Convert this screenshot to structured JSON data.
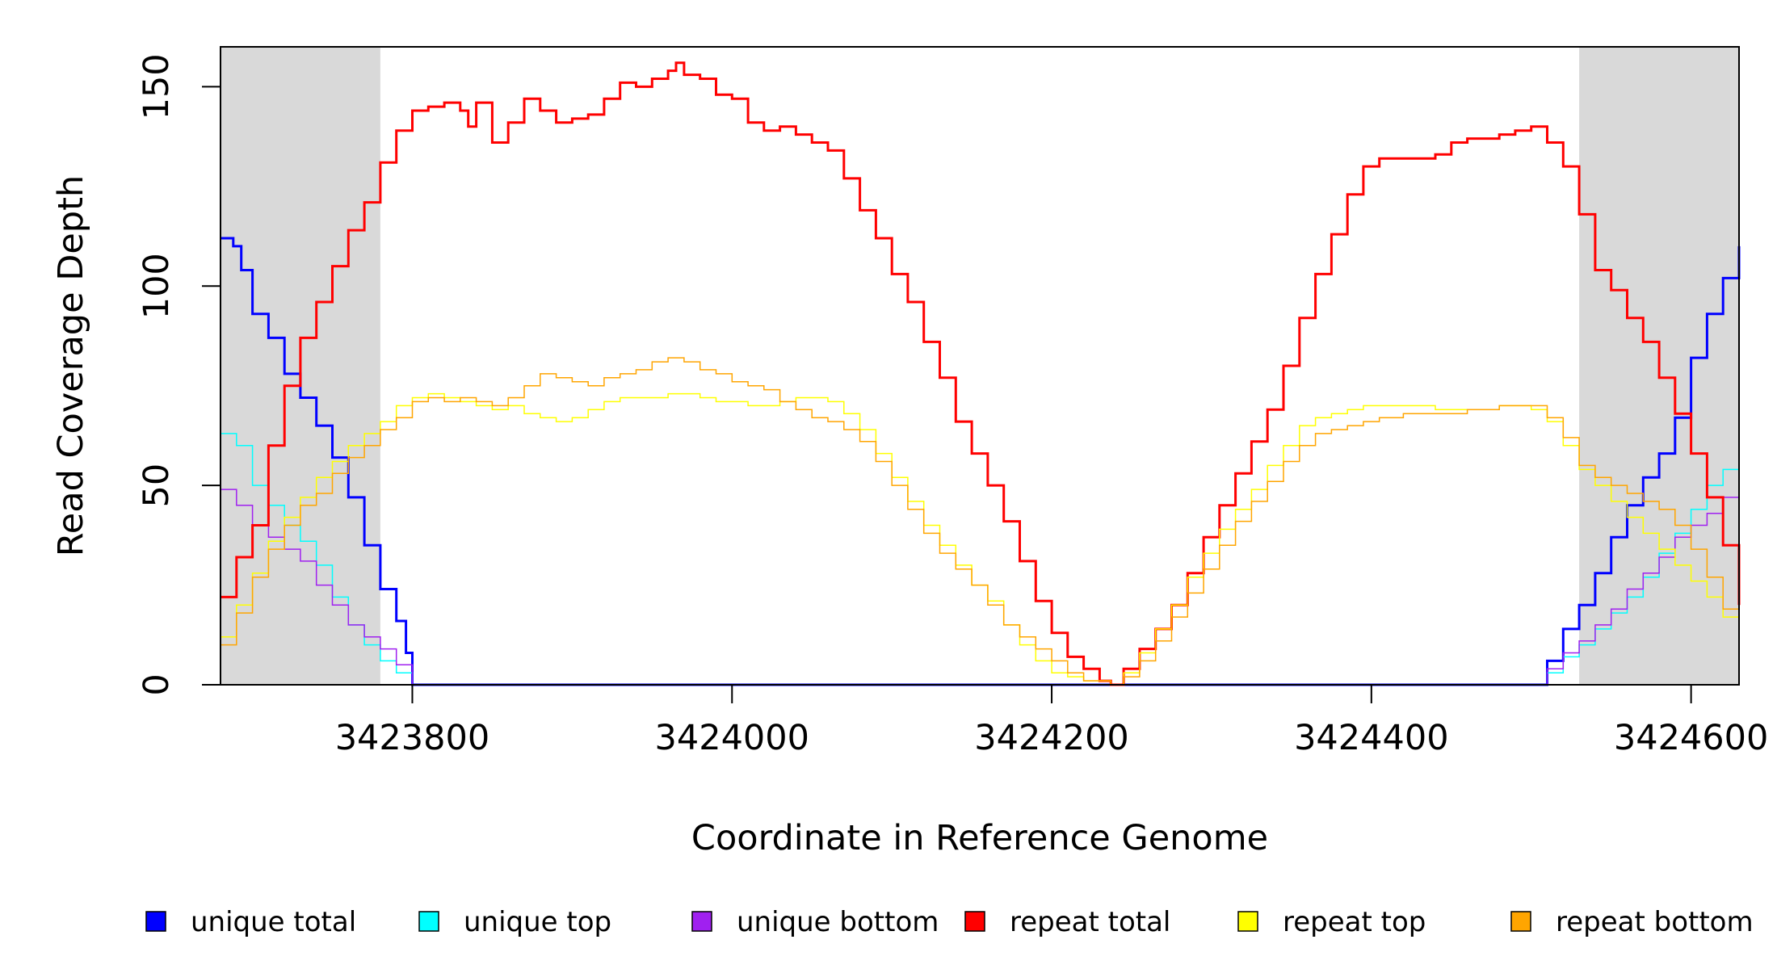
{
  "chart_data": {
    "type": "line",
    "title": "",
    "xlabel": "Coordinate in Reference Genome",
    "ylabel": "Read Coverage Depth",
    "xlim": [
      3423680,
      3424630
    ],
    "ylim": [
      0,
      160
    ],
    "x_ticks": [
      3423800,
      3424000,
      3424200,
      3424400,
      3424600
    ],
    "y_ticks": [
      0,
      50,
      100,
      150
    ],
    "x_tick_labels": [
      "3423800",
      "3424000",
      "3424200",
      "3424400",
      "3424600"
    ],
    "y_tick_labels": [
      "0",
      "50",
      "100",
      "150"
    ],
    "shaded_regions": [
      {
        "start": 3423680,
        "end": 3423780
      },
      {
        "start": 3424530,
        "end": 3424630
      }
    ],
    "shading_color": "#d9d9d9",
    "legend_position": "bottom",
    "series": [
      {
        "name": "unique total",
        "color": "#0000ff",
        "width": 3,
        "x": [
          3423680,
          3423688,
          3423693,
          3423700,
          3423710,
          3423720,
          3423730,
          3423740,
          3423750,
          3423760,
          3423770,
          3423780,
          3423790,
          3423796,
          3423800,
          3424505,
          3424510,
          3424520,
          3424530,
          3424540,
          3424550,
          3424560,
          3424570,
          3424580,
          3424590,
          3424600,
          3424610,
          3424620,
          3424630
        ],
        "values": [
          112,
          110,
          104,
          93,
          87,
          78,
          72,
          65,
          57,
          47,
          35,
          24,
          16,
          8,
          0,
          0,
          6,
          14,
          20,
          28,
          37,
          45,
          52,
          58,
          67,
          82,
          93,
          102,
          110
        ]
      },
      {
        "name": "unique top",
        "color": "#00ffff",
        "width": 1.5,
        "x": [
          3423680,
          3423690,
          3423700,
          3423710,
          3423720,
          3423730,
          3423740,
          3423750,
          3423760,
          3423770,
          3423780,
          3423790,
          3423800,
          3424505,
          3424510,
          3424520,
          3424530,
          3424540,
          3424550,
          3424560,
          3424570,
          3424580,
          3424590,
          3424600,
          3424610,
          3424620,
          3424630
        ],
        "values": [
          63,
          60,
          50,
          45,
          40,
          36,
          30,
          22,
          15,
          10,
          6,
          3,
          0,
          0,
          3,
          7,
          10,
          14,
          18,
          22,
          27,
          33,
          38,
          44,
          50,
          54,
          57
        ]
      },
      {
        "name": "unique bottom",
        "color": "#a020f0",
        "width": 1.5,
        "x": [
          3423680,
          3423690,
          3423700,
          3423710,
          3423720,
          3423730,
          3423740,
          3423750,
          3423760,
          3423770,
          3423780,
          3423790,
          3423800,
          3424505,
          3424510,
          3424520,
          3424530,
          3424540,
          3424550,
          3424560,
          3424570,
          3424580,
          3424590,
          3424600,
          3424610,
          3424620,
          3424630
        ],
        "values": [
          49,
          45,
          40,
          37,
          34,
          31,
          25,
          20,
          15,
          12,
          9,
          5,
          0,
          0,
          4,
          8,
          11,
          15,
          19,
          24,
          28,
          32,
          37,
          40,
          43,
          47,
          53
        ]
      },
      {
        "name": "repeat total",
        "color": "#ff0000",
        "width": 3,
        "x": [
          3423680,
          3423690,
          3423700,
          3423710,
          3423720,
          3423730,
          3423740,
          3423750,
          3423760,
          3423770,
          3423780,
          3423790,
          3423800,
          3423810,
          3423820,
          3423830,
          3423835,
          3423840,
          3423850,
          3423860,
          3423870,
          3423880,
          3423890,
          3423900,
          3423910,
          3423920,
          3423930,
          3423940,
          3423950,
          3423960,
          3423965,
          3423970,
          3423980,
          3423990,
          3424000,
          3424010,
          3424020,
          3424030,
          3424040,
          3424050,
          3424060,
          3424070,
          3424080,
          3424090,
          3424100,
          3424110,
          3424120,
          3424130,
          3424140,
          3424150,
          3424160,
          3424170,
          3424180,
          3424190,
          3424200,
          3424210,
          3424220,
          3424230,
          3424237,
          3424245,
          3424255,
          3424265,
          3424275,
          3424285,
          3424295,
          3424305,
          3424315,
          3424325,
          3424335,
          3424345,
          3424355,
          3424365,
          3424375,
          3424385,
          3424395,
          3424405,
          3424420,
          3424440,
          3424450,
          3424460,
          3424470,
          3424480,
          3424490,
          3424500,
          3424510,
          3424520,
          3424530,
          3424540,
          3424550,
          3424560,
          3424570,
          3424580,
          3424590,
          3424600,
          3424610,
          3424620,
          3424630
        ],
        "values": [
          22,
          32,
          40,
          60,
          75,
          87,
          96,
          105,
          114,
          121,
          131,
          139,
          144,
          145,
          146,
          144,
          140,
          146,
          136,
          141,
          147,
          144,
          141,
          142,
          143,
          147,
          151,
          150,
          152,
          154,
          156,
          153,
          152,
          148,
          147,
          141,
          139,
          140,
          138,
          136,
          134,
          127,
          119,
          112,
          103,
          96,
          86,
          77,
          66,
          58,
          50,
          41,
          31,
          21,
          13,
          7,
          4,
          1,
          0,
          4,
          9,
          14,
          20,
          28,
          37,
          45,
          53,
          61,
          69,
          80,
          92,
          103,
          113,
          123,
          130,
          132,
          132,
          133,
          136,
          137,
          137,
          138,
          139,
          140,
          136,
          130,
          118,
          104,
          99,
          92,
          86,
          77,
          68,
          58,
          47,
          35,
          20
        ]
      },
      {
        "name": "repeat top",
        "color": "#ffff00",
        "width": 1.5,
        "x": [
          3423680,
          3423690,
          3423700,
          3423710,
          3423720,
          3423730,
          3423740,
          3423750,
          3423760,
          3423770,
          3423780,
          3423790,
          3423800,
          3423810,
          3423820,
          3423830,
          3423840,
          3423850,
          3423860,
          3423870,
          3423880,
          3423890,
          3423900,
          3423910,
          3423920,
          3423930,
          3423940,
          3423950,
          3423960,
          3423970,
          3423980,
          3423990,
          3424000,
          3424010,
          3424020,
          3424030,
          3424040,
          3424050,
          3424060,
          3424070,
          3424080,
          3424090,
          3424100,
          3424110,
          3424120,
          3424130,
          3424140,
          3424150,
          3424160,
          3424170,
          3424180,
          3424190,
          3424200,
          3424210,
          3424220,
          3424230,
          3424237,
          3424245,
          3424255,
          3424265,
          3424275,
          3424285,
          3424295,
          3424305,
          3424315,
          3424325,
          3424335,
          3424345,
          3424355,
          3424365,
          3424375,
          3424385,
          3424395,
          3424405,
          3424420,
          3424440,
          3424460,
          3424480,
          3424490,
          3424500,
          3424510,
          3424520,
          3424530,
          3424540,
          3424550,
          3424560,
          3424570,
          3424580,
          3424590,
          3424600,
          3424610,
          3424620,
          3424630
        ],
        "values": [
          12,
          20,
          28,
          36,
          42,
          47,
          52,
          56,
          60,
          63,
          66,
          70,
          72,
          73,
          72,
          71,
          70,
          69,
          70,
          68,
          67,
          66,
          67,
          69,
          71,
          72,
          72,
          72,
          73,
          73,
          72,
          71,
          71,
          70,
          70,
          71,
          72,
          72,
          71,
          68,
          64,
          58,
          52,
          46,
          40,
          35,
          30,
          25,
          21,
          15,
          10,
          6,
          3,
          2,
          1,
          1,
          0,
          3,
          8,
          14,
          20,
          27,
          33,
          39,
          44,
          49,
          55,
          60,
          65,
          67,
          68,
          69,
          70,
          70,
          70,
          69,
          69,
          70,
          70,
          69,
          66,
          60,
          54,
          50,
          46,
          42,
          38,
          34,
          30,
          26,
          22,
          17,
          10
        ]
      },
      {
        "name": "repeat bottom",
        "color": "#ffa500",
        "width": 1.5,
        "x": [
          3423680,
          3423690,
          3423700,
          3423710,
          3423720,
          3423730,
          3423740,
          3423750,
          3423760,
          3423770,
          3423780,
          3423790,
          3423800,
          3423810,
          3423820,
          3423830,
          3423840,
          3423850,
          3423860,
          3423870,
          3423880,
          3423890,
          3423900,
          3423910,
          3423920,
          3423930,
          3423940,
          3423950,
          3423960,
          3423970,
          3423980,
          3423990,
          3424000,
          3424010,
          3424020,
          3424030,
          3424040,
          3424050,
          3424060,
          3424070,
          3424080,
          3424090,
          3424100,
          3424110,
          3424120,
          3424130,
          3424140,
          3424150,
          3424160,
          3424170,
          3424180,
          3424190,
          3424200,
          3424210,
          3424220,
          3424230,
          3424237,
          3424245,
          3424255,
          3424265,
          3424275,
          3424285,
          3424295,
          3424305,
          3424315,
          3424325,
          3424335,
          3424345,
          3424355,
          3424365,
          3424375,
          3424385,
          3424395,
          3424405,
          3424420,
          3424440,
          3424460,
          3424480,
          3424490,
          3424500,
          3424510,
          3424520,
          3424530,
          3424540,
          3424550,
          3424560,
          3424570,
          3424580,
          3424590,
          3424600,
          3424610,
          3424620,
          3424630
        ],
        "values": [
          10,
          18,
          27,
          34,
          40,
          45,
          48,
          53,
          57,
          60,
          64,
          67,
          71,
          72,
          71,
          72,
          71,
          70,
          72,
          75,
          78,
          77,
          76,
          75,
          77,
          78,
          79,
          81,
          82,
          81,
          79,
          78,
          76,
          75,
          74,
          71,
          69,
          67,
          66,
          64,
          61,
          56,
          50,
          44,
          38,
          33,
          29,
          25,
          20,
          15,
          12,
          9,
          6,
          3,
          1,
          1,
          0,
          2,
          6,
          11,
          17,
          23,
          29,
          35,
          41,
          46,
          51,
          56,
          60,
          63,
          64,
          65,
          66,
          67,
          68,
          68,
          69,
          70,
          70,
          70,
          67,
          62,
          55,
          52,
          50,
          48,
          46,
          44,
          40,
          34,
          27,
          19,
          11
        ]
      }
    ]
  }
}
